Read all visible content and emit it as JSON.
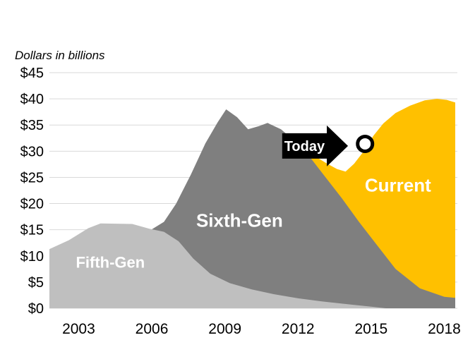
{
  "page": {
    "background": "#FFFFFF"
  },
  "chart_data": {
    "type": "area",
    "title": "Dollars in billions",
    "grid": true,
    "grid_color": "#D9D9D9",
    "legend_position": "none",
    "x_axis": {
      "ticks": [
        2003,
        2006,
        2009,
        2012,
        2015,
        2018
      ],
      "tick_labels": [
        "2003",
        "2006",
        "2009",
        "2012",
        "2015",
        "2018"
      ],
      "range": [
        2001.8,
        2018.45
      ]
    },
    "y_axis": {
      "min": 0,
      "max": 45,
      "step": 5,
      "tick_labels": [
        "$0",
        "$5",
        "$10",
        "$15",
        "$20",
        "$25",
        "$30",
        "$35",
        "$40",
        "$45"
      ]
    },
    "series": [
      {
        "name": "Fifth-Gen",
        "color": "#BFBFBF",
        "label": {
          "text": "Fifth-Gen",
          "x": 2004.3,
          "y": 8.8,
          "size": 22,
          "color": "#FFFFFF"
        },
        "x": [
          2001.8,
          2002.6,
          2003.4,
          2003.9,
          2005.2,
          2005.9,
          2006.5,
          2007.1,
          2007.7,
          2008.4,
          2009.2,
          2010.1,
          2011.0,
          2012.0,
          2013.0,
          2014.0,
          2015.0,
          2015.6
        ],
        "y": [
          11.3,
          13.0,
          15.3,
          16.2,
          16.1,
          15.2,
          14.6,
          12.8,
          9.5,
          6.6,
          4.8,
          3.6,
          2.7,
          1.9,
          1.3,
          0.8,
          0.3,
          0.0
        ]
      },
      {
        "name": "Sixth-Gen",
        "color": "#7F7F7F",
        "label": {
          "text": "Sixth-Gen",
          "x": 2009.6,
          "y": 16.8,
          "size": 26,
          "color": "#FFFFFF"
        },
        "x": [
          2005.2,
          2005.9,
          2006.5,
          2007.0,
          2007.6,
          2008.2,
          2008.7,
          2009.05,
          2009.5,
          2009.95,
          2010.4,
          2010.75,
          2011.3,
          2011.9,
          2012.5,
          2013.1,
          2013.8,
          2014.5,
          2015.2,
          2016.0,
          2017.0,
          2018.0,
          2018.45
        ],
        "y": [
          13.2,
          14.8,
          16.5,
          20.0,
          25.5,
          31.5,
          35.5,
          38.0,
          36.5,
          34.2,
          34.8,
          35.4,
          34.2,
          31.8,
          28.8,
          25.2,
          21.0,
          16.5,
          12.3,
          7.5,
          3.8,
          2.2,
          2.0
        ]
      },
      {
        "name": "Current",
        "color": "#FFC000",
        "label": {
          "text": "Current",
          "x": 2016.1,
          "y": 23.5,
          "size": 26,
          "color": "#FFFFFF"
        },
        "x": [
          2011.5,
          2012.0,
          2012.6,
          2013.2,
          2013.6,
          2013.95,
          2014.3,
          2014.7,
          2015.1,
          2015.5,
          2016.0,
          2016.6,
          2017.2,
          2017.7,
          2018.1,
          2018.45
        ],
        "y": [
          32.5,
          31.2,
          29.3,
          27.6,
          26.6,
          26.1,
          27.6,
          30.0,
          33.0,
          35.3,
          37.3,
          38.7,
          39.7,
          40.0,
          39.8,
          39.3
        ]
      }
    ],
    "annotations": {
      "today": {
        "label": "Today",
        "x_start": 2011.35,
        "x_tip": 2014.05,
        "y": 31,
        "arrow_color": "#000000",
        "text_color": "#FFFFFF"
      },
      "marker": {
        "shape": "circle",
        "x": 2014.75,
        "y": 31.4,
        "fill": "#FFFFFF",
        "stroke": "#000000"
      }
    }
  }
}
